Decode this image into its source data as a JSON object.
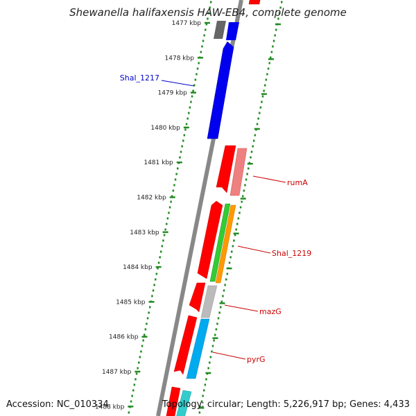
{
  "title": "Shewanella halifaxensis HAW-EB4, complete genome",
  "footer": {
    "accession": "Accession: NC_010334",
    "summary": "Topology: circular; Length: 5,226,917 bp; Genes: 4,433"
  },
  "ticks": [
    {
      "label": "1477 kbp",
      "kbp": 1477
    },
    {
      "label": "1478 kbp",
      "kbp": 1478
    },
    {
      "label": "1479 kbp",
      "kbp": 1479
    },
    {
      "label": "1480 kbp",
      "kbp": 1480
    },
    {
      "label": "1481 kbp",
      "kbp": 1481
    },
    {
      "label": "1482 kbp",
      "kbp": 1482
    },
    {
      "label": "1483 kbp",
      "kbp": 1483
    },
    {
      "label": "1484 kbp",
      "kbp": 1484
    },
    {
      "label": "1485 kbp",
      "kbp": 1485
    },
    {
      "label": "1486 kbp",
      "kbp": 1486
    },
    {
      "label": "1487 kbp",
      "kbp": 1487
    },
    {
      "label": "1488 kbp",
      "kbp": 1488
    }
  ],
  "gene_labels": [
    {
      "text": "Shal_1217",
      "color": "#0000cc"
    },
    {
      "text": "rumA",
      "color": "#cc0000"
    },
    {
      "text": "Shal_1219",
      "color": "#cc0000"
    },
    {
      "text": "mazG",
      "color": "#cc0000"
    },
    {
      "text": "pyrG",
      "color": "#cc0000"
    }
  ],
  "colors": {
    "backbone": "#888888",
    "tick_green": "#228b22",
    "label_red": "#cc0000",
    "label_blue": "#0000cc"
  }
}
